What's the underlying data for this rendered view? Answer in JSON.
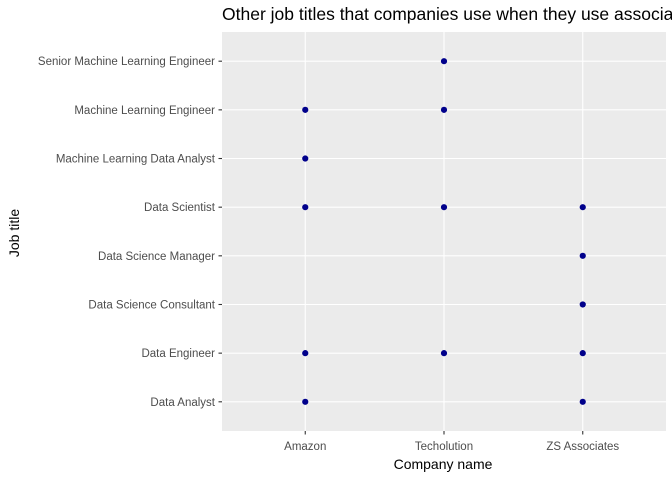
{
  "chart_data": {
    "type": "scatter",
    "title": "Other job titles that companies use when they use associates",
    "xlabel": "Company name",
    "ylabel": "Job title",
    "x_categories": [
      "Amazon",
      "Techolution",
      "ZS Associates"
    ],
    "y_categories": [
      "Data Analyst",
      "Data Engineer",
      "Data Science Consultant",
      "Data Science Manager",
      "Data Scientist",
      "Machine Learning Data Analyst",
      "Machine Learning Engineer",
      "Senior Machine Learning Engineer"
    ],
    "points": [
      {
        "x": "Amazon",
        "y": "Data Analyst"
      },
      {
        "x": "Amazon",
        "y": "Data Engineer"
      },
      {
        "x": "Amazon",
        "y": "Data Scientist"
      },
      {
        "x": "Amazon",
        "y": "Machine Learning Data Analyst"
      },
      {
        "x": "Amazon",
        "y": "Machine Learning Engineer"
      },
      {
        "x": "Techolution",
        "y": "Data Engineer"
      },
      {
        "x": "Techolution",
        "y": "Data Scientist"
      },
      {
        "x": "Techolution",
        "y": "Machine Learning Engineer"
      },
      {
        "x": "Techolution",
        "y": "Senior Machine Learning Engineer"
      },
      {
        "x": "ZS Associates",
        "y": "Data Analyst"
      },
      {
        "x": "ZS Associates",
        "y": "Data Engineer"
      },
      {
        "x": "ZS Associates",
        "y": "Data Science Consultant"
      },
      {
        "x": "ZS Associates",
        "y": "Data Science Manager"
      },
      {
        "x": "ZS Associates",
        "y": "Data Scientist"
      }
    ],
    "grid": true,
    "legend": "none",
    "colors": {
      "point": "#00008b",
      "panel": "#ebebeb",
      "grid": "#ffffff",
      "tick": "#333333"
    }
  }
}
